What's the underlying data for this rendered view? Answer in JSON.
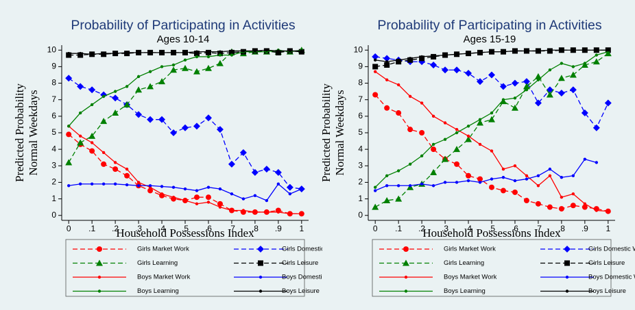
{
  "chart_data": [
    {
      "type": "line",
      "title": "Probability of Participating in Activities",
      "subtitle": "Ages 10-14",
      "ylabel": [
        "Predicted Probability",
        "Normal Weekdays"
      ],
      "xlabel": "Household Possessions Index",
      "x": [
        0,
        0.05,
        0.1,
        0.15,
        0.2,
        0.25,
        0.3,
        0.35,
        0.4,
        0.45,
        0.5,
        0.55,
        0.6,
        0.65,
        0.7,
        0.75,
        0.8,
        0.85,
        0.9,
        0.95,
        1
      ],
      "xlim": [
        -0.03,
        1.03
      ],
      "ylim": [
        -0.3,
        10.3
      ],
      "xticks": [
        0,
        {
          "value": 0.1,
          "label": ".1"
        },
        {
          "value": 0.2,
          "label": ".2"
        },
        {
          "value": 0.3,
          "label": ".3"
        },
        {
          "value": 0.4,
          "label": ".4"
        },
        {
          "value": 0.5,
          "label": ".5"
        },
        {
          "value": 0.6,
          "label": ".6"
        },
        {
          "value": 0.7,
          "label": ".7"
        },
        {
          "value": 0.8,
          "label": ".8"
        },
        {
          "value": 0.9,
          "label": ".9"
        },
        1
      ],
      "yticks": [
        0,
        1,
        2,
        3,
        4,
        5,
        6,
        7,
        8,
        9,
        10
      ],
      "series": [
        {
          "name": "Girls Market Work",
          "color": "#ff0000",
          "line_style": "dashed",
          "marker": "circle",
          "values": [
            4.9,
            4.3,
            3.9,
            3.1,
            2.8,
            2.4,
            1.8,
            1.5,
            1.2,
            1.0,
            0.9,
            1.1,
            1.1,
            0.7,
            0.3,
            0.2,
            0.2,
            0.2,
            0.3,
            0.1,
            0.1
          ]
        },
        {
          "name": "Girls Domestic Work",
          "color": "#0000ff",
          "line_style": "dashed",
          "marker": "diamond",
          "values": [
            8.3,
            7.8,
            7.6,
            7.3,
            7.1,
            6.7,
            6.1,
            5.8,
            5.8,
            5.0,
            5.3,
            5.4,
            5.9,
            5.2,
            3.1,
            3.8,
            2.6,
            2.8,
            2.6,
            1.7,
            1.6
          ]
        },
        {
          "name": "Girls Learning",
          "color": "#008000",
          "line_style": "dashed",
          "marker": "triangle",
          "values": [
            3.2,
            4.4,
            4.8,
            5.7,
            6.2,
            6.7,
            7.6,
            7.8,
            8.1,
            8.8,
            8.9,
            8.7,
            8.9,
            9.2,
            9.9,
            9.8,
            9.9,
            9.9,
            9.9,
            9.9,
            10.0
          ]
        },
        {
          "name": "Girls Leisure",
          "color": "#000000",
          "line_style": "dashed",
          "marker": "square",
          "values": [
            9.7,
            9.7,
            9.75,
            9.75,
            9.8,
            9.8,
            9.85,
            9.85,
            9.85,
            9.85,
            9.85,
            9.8,
            9.85,
            9.8,
            9.85,
            9.9,
            9.95,
            9.95,
            9.85,
            9.95,
            9.9
          ]
        },
        {
          "name": "Boys Market Work",
          "color": "#ff0000",
          "line_style": "solid",
          "marker": "dot",
          "values": [
            5.4,
            4.8,
            4.4,
            3.8,
            3.2,
            2.8,
            2.0,
            1.7,
            1.3,
            1.1,
            0.9,
            0.7,
            0.8,
            0.5,
            0.3,
            0.3,
            0.2,
            0.2,
            0.2,
            0.1,
            0.1
          ]
        },
        {
          "name": "Boys Domestic Work",
          "color": "#0000ff",
          "line_style": "solid",
          "marker": "dot",
          "values": [
            1.8,
            1.9,
            1.9,
            1.9,
            1.9,
            1.85,
            1.8,
            1.8,
            1.75,
            1.7,
            1.6,
            1.5,
            1.7,
            1.6,
            1.3,
            1.0,
            1.2,
            0.9,
            1.9,
            1.3,
            1.6
          ]
        },
        {
          "name": "Boys Learning",
          "color": "#008000",
          "line_style": "solid",
          "marker": "dot",
          "values": [
            5.4,
            6.2,
            6.7,
            7.2,
            7.5,
            7.8,
            8.4,
            8.7,
            9.0,
            9.1,
            9.4,
            9.6,
            9.6,
            9.7,
            9.7,
            9.9,
            9.9,
            9.9,
            10.0,
            9.9,
            10.0
          ]
        },
        {
          "name": "Boys Leisure",
          "color": "#000000",
          "line_style": "solid",
          "marker": "dot",
          "values": [
            9.8,
            9.8,
            9.75,
            9.8,
            9.8,
            9.85,
            9.85,
            9.85,
            9.85,
            9.85,
            9.85,
            9.9,
            9.9,
            9.9,
            9.95,
            9.95,
            9.95,
            10.0,
            9.95,
            9.95,
            9.95
          ]
        }
      ]
    },
    {
      "type": "line",
      "title": "Probability of Participating in Activities",
      "subtitle": "Ages 15-19",
      "ylabel": [
        "Predicted Probability",
        "Normal Weekdays"
      ],
      "xlabel": "Household Possessions Index",
      "x": [
        0,
        0.05,
        0.1,
        0.15,
        0.2,
        0.25,
        0.3,
        0.35,
        0.4,
        0.45,
        0.5,
        0.55,
        0.6,
        0.65,
        0.7,
        0.75,
        0.8,
        0.85,
        0.9,
        0.95,
        1
      ],
      "xlim": [
        -0.03,
        1.03
      ],
      "ylim": [
        -0.3,
        10.3
      ],
      "xticks": [
        0,
        {
          "value": 0.1,
          "label": ".1"
        },
        {
          "value": 0.2,
          "label": ".2"
        },
        {
          "value": 0.3,
          "label": ".3"
        },
        {
          "value": 0.4,
          "label": ".4"
        },
        {
          "value": 0.5,
          "label": ".5"
        },
        {
          "value": 0.6,
          "label": ".6"
        },
        {
          "value": 0.7,
          "label": ".7"
        },
        {
          "value": 0.8,
          "label": ".8"
        },
        {
          "value": 0.9,
          "label": ".9"
        },
        1
      ],
      "yticks": [
        0,
        1,
        2,
        3,
        4,
        5,
        6,
        7,
        8,
        9,
        10
      ],
      "series": [
        {
          "name": "Girls Market Work",
          "color": "#ff0000",
          "line_style": "dashed",
          "marker": "circle",
          "values": [
            7.3,
            6.5,
            6.2,
            5.2,
            5.0,
            4.0,
            3.4,
            3.1,
            2.4,
            2.2,
            1.7,
            1.5,
            1.4,
            0.9,
            0.7,
            0.5,
            0.4,
            0.6,
            0.5,
            0.4,
            0.25
          ]
        },
        {
          "name": "Girls Domestic Work",
          "color": "#0000ff",
          "line_style": "dashed",
          "marker": "diamond",
          "values": [
            9.6,
            9.5,
            9.4,
            9.3,
            9.3,
            9.1,
            8.8,
            8.8,
            8.6,
            8.1,
            8.5,
            7.8,
            8.0,
            8.1,
            6.8,
            7.6,
            7.4,
            7.6,
            6.2,
            5.3,
            6.8
          ]
        },
        {
          "name": "Girls Learning",
          "color": "#008000",
          "line_style": "dashed",
          "marker": "triangle",
          "values": [
            0.5,
            0.9,
            1.0,
            1.7,
            1.9,
            2.6,
            3.4,
            4.0,
            4.6,
            5.6,
            5.8,
            6.9,
            6.5,
            7.8,
            8.4,
            7.3,
            8.3,
            8.5,
            9.1,
            9.3,
            9.8
          ]
        },
        {
          "name": "Girls Leisure",
          "color": "#000000",
          "line_style": "dashed",
          "marker": "square",
          "values": [
            9.0,
            9.1,
            9.3,
            9.4,
            9.5,
            9.6,
            9.7,
            9.75,
            9.8,
            9.85,
            9.9,
            9.9,
            9.95,
            9.95,
            9.95,
            9.95,
            10.0,
            10.0,
            10.0,
            10.0,
            10.0
          ]
        },
        {
          "name": "Boys Market Work",
          "color": "#ff0000",
          "line_style": "solid",
          "marker": "dot",
          "values": [
            8.7,
            8.2,
            7.9,
            7.2,
            6.8,
            6.0,
            5.6,
            5.2,
            4.8,
            4.3,
            3.9,
            2.8,
            3.0,
            2.4,
            1.8,
            2.4,
            1.1,
            1.3,
            0.7,
            0.3,
            0.25
          ]
        },
        {
          "name": "Boys Domestic Work",
          "color": "#0000ff",
          "line_style": "solid",
          "marker": "dot",
          "values": [
            1.5,
            1.8,
            1.8,
            1.8,
            1.9,
            1.8,
            2.0,
            2.0,
            2.1,
            2.0,
            2.2,
            2.3,
            2.1,
            2.2,
            2.4,
            2.8,
            2.3,
            2.4,
            3.4,
            3.2,
            null
          ]
        },
        {
          "name": "Boys Learning",
          "color": "#008000",
          "line_style": "solid",
          "marker": "dot",
          "values": [
            1.7,
            2.4,
            2.7,
            3.1,
            3.6,
            4.3,
            4.6,
            5.0,
            5.4,
            5.8,
            6.2,
            7.0,
            7.1,
            7.6,
            8.2,
            8.8,
            9.2,
            9.0,
            9.2,
            9.7,
            9.9
          ]
        },
        {
          "name": "Boys Leisure",
          "color": "#000000",
          "line_style": "solid",
          "marker": "dot",
          "values": [
            9.4,
            9.3,
            9.4,
            9.5,
            9.6,
            9.65,
            9.7,
            9.75,
            9.8,
            9.85,
            9.9,
            9.9,
            9.95,
            9.95,
            9.95,
            10.0,
            10.0,
            10.0,
            10.0,
            10.0,
            10.0
          ]
        }
      ]
    }
  ]
}
